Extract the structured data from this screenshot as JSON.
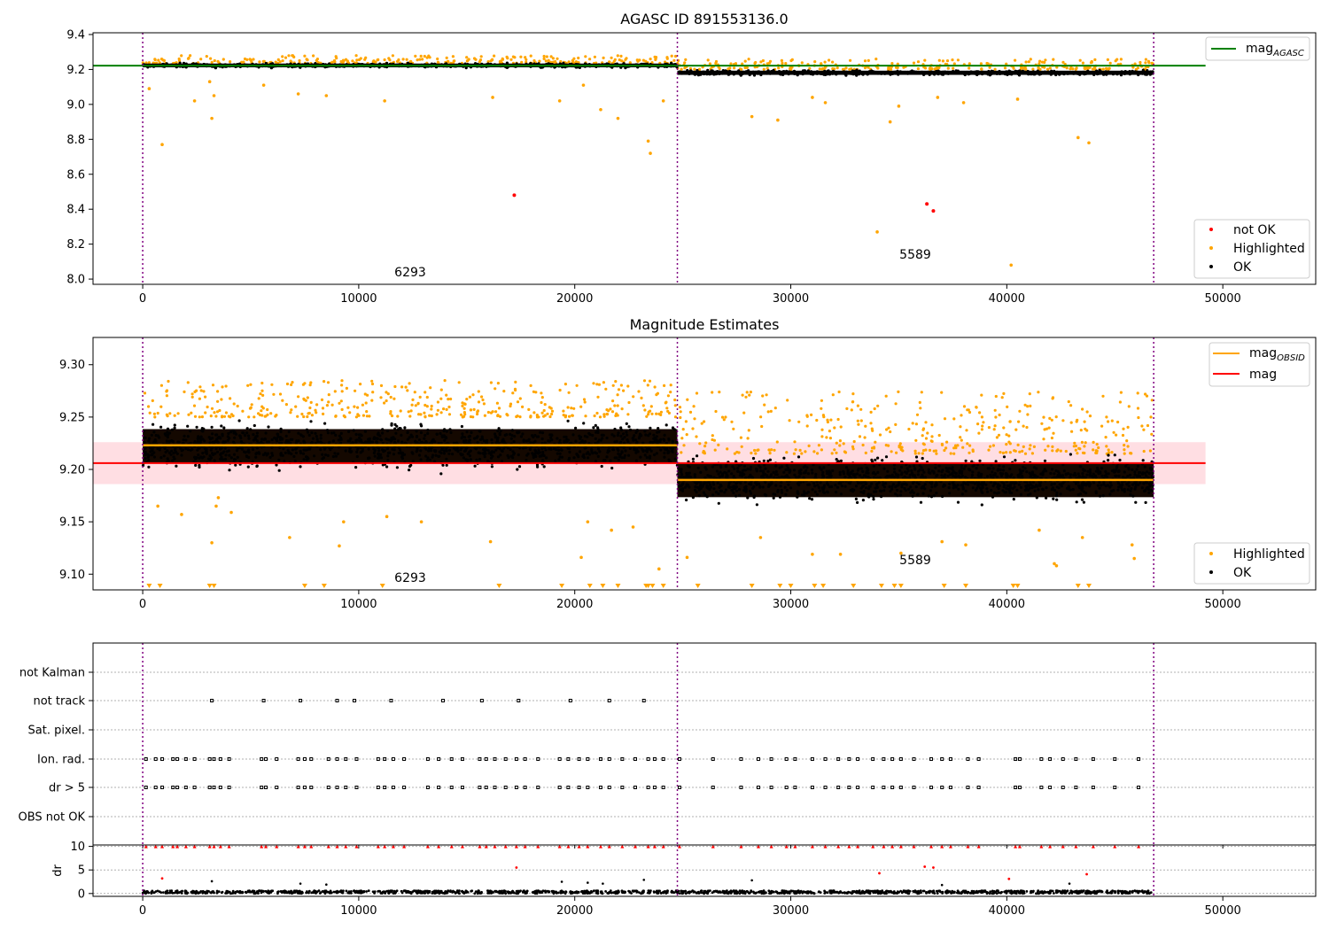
{
  "figure": {
    "background": "#ffffff",
    "colors": {
      "ok": "#000000",
      "highlighted": "#ffa500",
      "not_ok": "#ff0000",
      "agasc_line": "#008000",
      "mag_line": "#ff0000",
      "obsid_line": "#ffa500",
      "obs_boundary": "#800080",
      "band": "#ffb6c1"
    }
  },
  "chart_data": [
    {
      "type": "scatter",
      "title": "AGASC ID 891553136.0",
      "xlabel": "",
      "ylabel": "",
      "xlim": [
        -2300,
        54300
      ],
      "ylim": [
        7.97,
        9.41
      ],
      "x_ticks": [
        0,
        10000,
        20000,
        30000,
        40000,
        50000
      ],
      "y_ticks": [
        8.0,
        8.2,
        8.4,
        8.6,
        8.8,
        9.0,
        9.2,
        9.4
      ],
      "y_tick_labels": [
        "8.0",
        "8.2",
        "8.4",
        "8.6",
        "8.8",
        "9.0",
        "9.2",
        "9.4"
      ],
      "obs_boundaries": [
        0,
        24750,
        46800
      ],
      "observations": [
        {
          "obsid_label": "6293",
          "label_x": 11700,
          "label_y": 8.03,
          "x_start": 0,
          "x_end": 24750
        },
        {
          "obsid_label": "5589",
          "label_x": 35000,
          "label_y": 8.13,
          "x_start": 24750,
          "x_end": 46800
        }
      ],
      "lines": [
        {
          "name": "mag_AGASC",
          "legend_main": "mag",
          "legend_sub": "AGASC",
          "y": 9.222,
          "x": [
            -2300,
            49200
          ],
          "color": "#008000"
        }
      ],
      "ok_bands": [
        {
          "x_start": 0,
          "x_end": 24750,
          "center": 9.223,
          "half_width": 0.018
        },
        {
          "x_start": 24750,
          "x_end": 46800,
          "center": 9.181,
          "half_width": 0.02
        }
      ],
      "highlight_bands": [
        {
          "x_start": 0,
          "x_end": 24750,
          "y_min": 9.235,
          "y_max": 9.28
        },
        {
          "x_start": 24750,
          "x_end": 46800,
          "y_min": 9.2,
          "y_max": 9.26
        }
      ],
      "highlighted_points": [
        {
          "x": 300,
          "y": 9.09
        },
        {
          "x": 900,
          "y": 8.77
        },
        {
          "x": 2400,
          "y": 9.02
        },
        {
          "x": 3200,
          "y": 8.92
        },
        {
          "x": 3300,
          "y": 9.05
        },
        {
          "x": 3100,
          "y": 9.13
        },
        {
          "x": 5600,
          "y": 9.11
        },
        {
          "x": 7200,
          "y": 9.06
        },
        {
          "x": 8500,
          "y": 9.05
        },
        {
          "x": 11200,
          "y": 9.02
        },
        {
          "x": 19300,
          "y": 9.02
        },
        {
          "x": 20400,
          "y": 9.11
        },
        {
          "x": 21200,
          "y": 8.97
        },
        {
          "x": 22000,
          "y": 8.92
        },
        {
          "x": 23400,
          "y": 8.79
        },
        {
          "x": 23500,
          "y": 8.72
        },
        {
          "x": 24100,
          "y": 9.02
        },
        {
          "x": 16200,
          "y": 9.04
        },
        {
          "x": 28200,
          "y": 8.93
        },
        {
          "x": 29400,
          "y": 8.91
        },
        {
          "x": 31000,
          "y": 9.04
        },
        {
          "x": 31600,
          "y": 9.01
        },
        {
          "x": 34000,
          "y": 8.27
        },
        {
          "x": 34600,
          "y": 8.9
        },
        {
          "x": 35000,
          "y": 8.99
        },
        {
          "x": 36800,
          "y": 9.04
        },
        {
          "x": 38000,
          "y": 9.01
        },
        {
          "x": 40200,
          "y": 8.08
        },
        {
          "x": 40500,
          "y": 9.03
        },
        {
          "x": 43300,
          "y": 8.81
        },
        {
          "x": 43800,
          "y": 8.78
        }
      ],
      "not_ok_points": [
        {
          "x": 17200,
          "y": 8.48
        },
        {
          "x": 36300,
          "y": 8.43
        },
        {
          "x": 36600,
          "y": 8.39
        }
      ],
      "legends": [
        {
          "position": "upper right",
          "entries": [
            {
              "kind": "line",
              "color": "#008000",
              "label": "mag",
              "sub": "AGASC"
            }
          ]
        },
        {
          "position": "lower right",
          "entries": [
            {
              "kind": "point",
              "color": "#ff0000",
              "label": "not OK"
            },
            {
              "kind": "point",
              "color": "#ffa500",
              "label": "Highlighted"
            },
            {
              "kind": "point",
              "color": "#000000",
              "label": "OK"
            }
          ]
        }
      ]
    },
    {
      "type": "scatter",
      "title": "Magnitude Estimates",
      "xlabel": "",
      "ylabel": "",
      "xlim": [
        -2300,
        54300
      ],
      "ylim": [
        9.085,
        9.326
      ],
      "x_ticks": [
        0,
        10000,
        20000,
        30000,
        40000,
        50000
      ],
      "y_ticks": [
        9.1,
        9.15,
        9.2,
        9.25,
        9.3
      ],
      "y_tick_labels": [
        "9.10",
        "9.15",
        "9.20",
        "9.25",
        "9.30"
      ],
      "obs_boundaries": [
        0,
        24750,
        46800
      ],
      "observations": [
        {
          "obsid_label": "6293",
          "label_x": 11700,
          "label_y": 9.093,
          "x_start": 0,
          "x_end": 24750
        },
        {
          "obsid_label": "5589",
          "label_x": 35000,
          "label_y": 9.113,
          "x_start": 24750,
          "x_end": 46800
        }
      ],
      "mag": 9.206,
      "mag_band": [
        9.186,
        9.226
      ],
      "mag_x_range": [
        -2300,
        49200
      ],
      "obsid_mags": [
        {
          "x_start": 0,
          "x_end": 24750,
          "value": 9.223
        },
        {
          "x_start": 24750,
          "x_end": 46800,
          "value": 9.19
        }
      ],
      "ok_bands": [
        {
          "x_start": 0,
          "x_end": 24750,
          "center": 9.222,
          "half_width": 0.03
        },
        {
          "x_start": 24750,
          "x_end": 46800,
          "center": 9.19,
          "half_width": 0.03
        }
      ],
      "highlight_bands": [
        {
          "x_start": 0,
          "x_end": 24750,
          "y_min": 9.25,
          "y_max": 9.285
        },
        {
          "x_start": 24750,
          "x_end": 46800,
          "y_min": 9.215,
          "y_max": 9.275
        }
      ],
      "highlighted_points": [
        {
          "x": 700,
          "y": 9.165
        },
        {
          "x": 1800,
          "y": 9.157
        },
        {
          "x": 3200,
          "y": 9.13
        },
        {
          "x": 3400,
          "y": 9.165
        },
        {
          "x": 3500,
          "y": 9.173
        },
        {
          "x": 4100,
          "y": 9.159
        },
        {
          "x": 6800,
          "y": 9.135
        },
        {
          "x": 9100,
          "y": 9.127
        },
        {
          "x": 9300,
          "y": 9.15
        },
        {
          "x": 11300,
          "y": 9.155
        },
        {
          "x": 12900,
          "y": 9.15
        },
        {
          "x": 16100,
          "y": 9.131
        },
        {
          "x": 20300,
          "y": 9.116
        },
        {
          "x": 20600,
          "y": 9.15
        },
        {
          "x": 21700,
          "y": 9.142
        },
        {
          "x": 22700,
          "y": 9.145
        },
        {
          "x": 23900,
          "y": 9.105
        },
        {
          "x": 25200,
          "y": 9.116
        },
        {
          "x": 28600,
          "y": 9.135
        },
        {
          "x": 31000,
          "y": 9.119
        },
        {
          "x": 32300,
          "y": 9.119
        },
        {
          "x": 35100,
          "y": 9.12
        },
        {
          "x": 37000,
          "y": 9.131
        },
        {
          "x": 38100,
          "y": 9.128
        },
        {
          "x": 42200,
          "y": 9.11
        },
        {
          "x": 42300,
          "y": 9.108
        },
        {
          "x": 45900,
          "y": 9.115
        },
        {
          "x": 45800,
          "y": 9.128
        },
        {
          "x": 41500,
          "y": 9.142
        },
        {
          "x": 43500,
          "y": 9.135
        }
      ],
      "off_scale_markers_x": [
        300,
        800,
        3100,
        3300,
        7500,
        8400,
        11100,
        16500,
        19400,
        20700,
        21300,
        22000,
        23300,
        23400,
        23600,
        24100,
        25700,
        28200,
        29500,
        30000,
        31100,
        31500,
        32900,
        34200,
        34800,
        35100,
        37100,
        38100,
        40300,
        40500,
        43300,
        43800
      ],
      "legends": [
        {
          "position": "upper right",
          "entries": [
            {
              "kind": "line",
              "color": "#ffa500",
              "label": "mag",
              "sub": "OBSID"
            },
            {
              "kind": "line",
              "color": "#ff0000",
              "label": "mag"
            }
          ]
        },
        {
          "position": "lower right",
          "entries": [
            {
              "kind": "point",
              "color": "#ffa500",
              "label": "Highlighted"
            },
            {
              "kind": "point",
              "color": "#000000",
              "label": "OK"
            }
          ]
        }
      ]
    },
    {
      "type": "scatter",
      "title": "",
      "xlabel": "",
      "ylabel": "",
      "xlim": [
        -2300,
        54300
      ],
      "obs_boundaries": [
        0,
        24750,
        46800
      ],
      "categories": [
        "not Kalman",
        "not track",
        "Sat. pixel.",
        "Ion. rad.",
        "dr > 5",
        "OBS not OK"
      ],
      "flags": {
        "not Kalman": [],
        "not track": [
          3200,
          5600,
          7300,
          9000,
          9800,
          11500,
          13900,
          15700,
          17400,
          19800,
          21600,
          23200
        ],
        "Sat. pixel.": [],
        "Ion. rad.": [
          150,
          600,
          900,
          1400,
          1600,
          2000,
          2400,
          3100,
          3300,
          3600,
          4000,
          5500,
          5700,
          6200,
          7200,
          7500,
          7800,
          8600,
          9000,
          9400,
          9900,
          10900,
          11200,
          11600,
          12100,
          13200,
          13700,
          14300,
          14800,
          15600,
          15900,
          16300,
          16800,
          17300,
          17700,
          18300,
          19300,
          19700,
          20200,
          20600,
          21200,
          21600,
          22200,
          22800,
          23400,
          23700,
          24100,
          24850,
          26400,
          27700,
          28500,
          29100,
          29800,
          30200,
          31000,
          31600,
          32200,
          32700,
          33100,
          33800,
          34300,
          34700,
          35100,
          35700,
          36500,
          37000,
          37400,
          38200,
          38700,
          40400,
          40600,
          41600,
          42000,
          42600,
          43200,
          44000,
          45000,
          46100
        ],
        "dr > 5": [
          150,
          600,
          900,
          1400,
          1600,
          2000,
          2400,
          3100,
          3300,
          3600,
          4000,
          5500,
          5700,
          6200,
          7200,
          7500,
          7800,
          8600,
          9000,
          9400,
          9900,
          10900,
          11200,
          11600,
          12100,
          13200,
          13700,
          14300,
          14800,
          15600,
          15900,
          16300,
          16800,
          17300,
          17700,
          18300,
          19300,
          19700,
          20200,
          20600,
          21200,
          21600,
          22200,
          22800,
          23400,
          23700,
          24100,
          24850,
          26400,
          27700,
          28500,
          29100,
          29800,
          30200,
          31000,
          31600,
          32200,
          32700,
          33100,
          33800,
          34300,
          34700,
          35100,
          35700,
          36500,
          37000,
          37400,
          38200,
          38700,
          40400,
          40600,
          41600,
          42000,
          42600,
          43200,
          44000,
          45000,
          46100
        ],
        "OBS not OK": []
      }
    },
    {
      "type": "scatter",
      "title": "",
      "xlabel": "",
      "ylabel": "dr",
      "xlim": [
        -2300,
        54300
      ],
      "ylim": [
        -0.6,
        10.3
      ],
      "x_ticks": [
        0,
        10000,
        20000,
        30000,
        40000,
        50000
      ],
      "y_ticks": [
        0,
        5,
        10
      ],
      "y_tick_labels": [
        "0",
        "5",
        "10"
      ],
      "obs_boundaries": [
        0,
        24750,
        46800
      ],
      "ok_band": {
        "y_min": 0.0,
        "y_max": 0.6
      },
      "clipped_dr_x": [
        150,
        600,
        900,
        1400,
        1600,
        2000,
        2400,
        3100,
        3300,
        3600,
        4000,
        5500,
        5700,
        6200,
        7200,
        7500,
        7800,
        8600,
        9000,
        9400,
        9900,
        10900,
        11200,
        11600,
        12100,
        13200,
        13700,
        14300,
        14800,
        15600,
        15900,
        16300,
        16800,
        17300,
        17700,
        18300,
        19300,
        19700,
        20200,
        20600,
        21200,
        21600,
        22200,
        22800,
        23400,
        23700,
        24100,
        24850,
        26400,
        27700,
        28500,
        29100,
        29800,
        30200,
        31000,
        31600,
        32200,
        32700,
        33100,
        33800,
        34300,
        34700,
        35100,
        35700,
        36500,
        37000,
        37400,
        38200,
        38700,
        40400,
        40600,
        41600,
        42000,
        42600,
        43200,
        44000,
        45000,
        46100
      ],
      "not_ok_points": [
        {
          "x": 900,
          "y": 3.2
        },
        {
          "x": 17300,
          "y": 5.5
        },
        {
          "x": 34100,
          "y": 4.3
        },
        {
          "x": 36200,
          "y": 5.7
        },
        {
          "x": 36600,
          "y": 5.5
        },
        {
          "x": 40100,
          "y": 3.1
        },
        {
          "x": 43700,
          "y": 4.1
        }
      ],
      "outlier_ok_points": [
        {
          "x": 3200,
          "y": 2.6
        },
        {
          "x": 7300,
          "y": 2.1
        },
        {
          "x": 8500,
          "y": 1.9
        },
        {
          "x": 19400,
          "y": 2.5
        },
        {
          "x": 20600,
          "y": 2.3
        },
        {
          "x": 21300,
          "y": 2.1
        },
        {
          "x": 23200,
          "y": 2.9
        },
        {
          "x": 28200,
          "y": 2.8
        },
        {
          "x": 37000,
          "y": 1.8
        },
        {
          "x": 42900,
          "y": 2.1
        }
      ]
    }
  ]
}
